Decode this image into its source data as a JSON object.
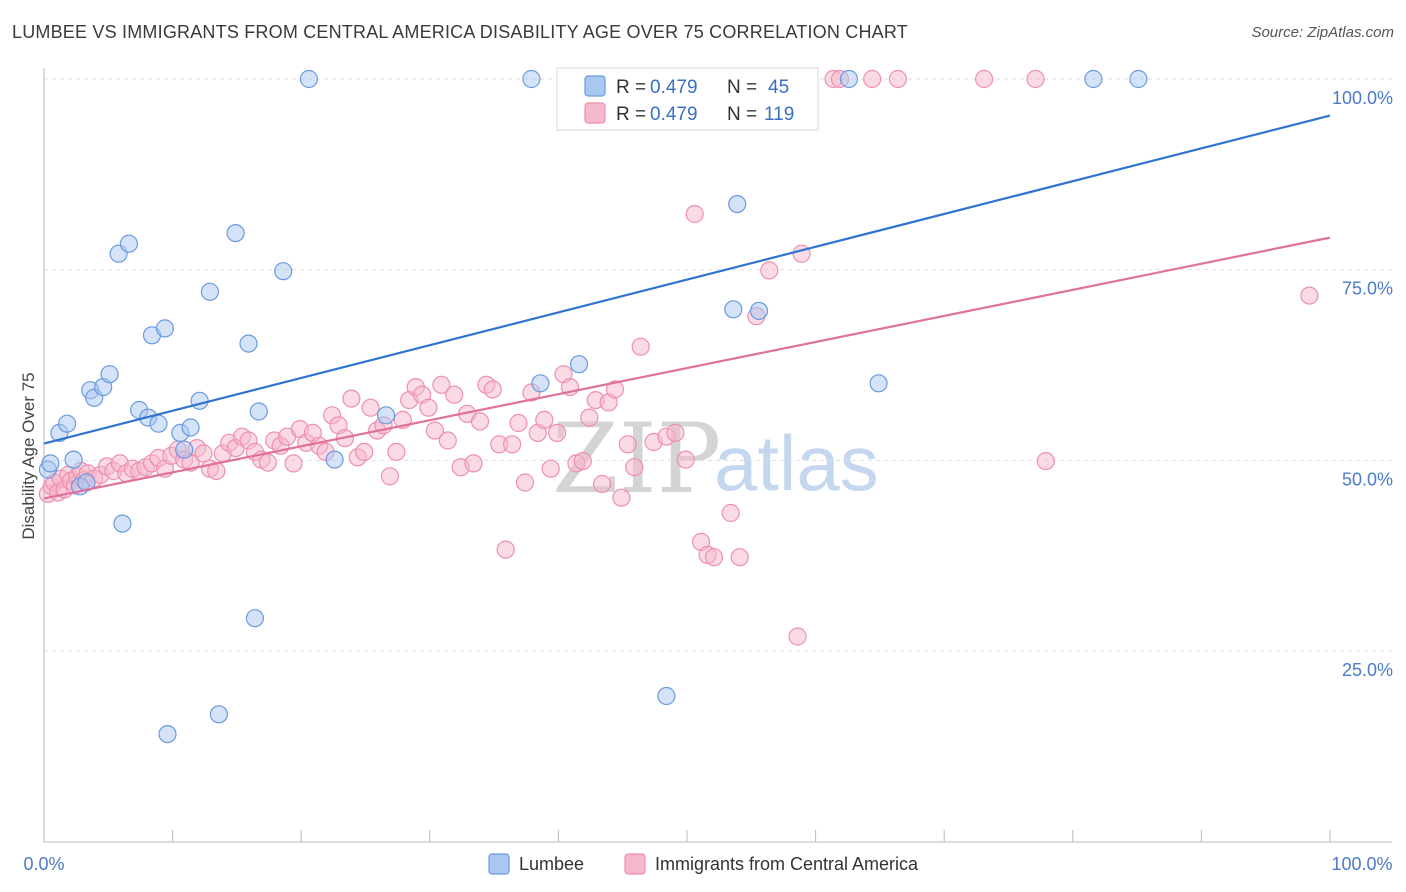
{
  "header": {
    "title": "LUMBEE VS IMMIGRANTS FROM CENTRAL AMERICA DISABILITY AGE OVER 75 CORRELATION CHART",
    "source": "Source: ZipAtlas.com"
  },
  "watermark": {
    "zip": "ZIP",
    "atlas": "atlas"
  },
  "legend_top": [
    {
      "r_label": "R = ",
      "r_value": "0.479",
      "n_label": "N = ",
      "n_value": "45"
    },
    {
      "r_label": "R = ",
      "r_value": "0.479",
      "n_label": "N = ",
      "n_value": "119"
    }
  ],
  "legend_bottom": [
    {
      "label": "Lumbee"
    },
    {
      "label": "Immigrants from Central America"
    }
  ],
  "colors": {
    "blue_fill": "#a9c8f0",
    "blue_stroke": "#6b9ae0",
    "blue_line": "#2f74d0",
    "pink_fill": "#f6b8cc",
    "pink_stroke": "#ee8fb0",
    "pink_line": "#e0719a",
    "tick_text": "#4a7bc8",
    "grid": "#dedede"
  },
  "chart_data": {
    "type": "scatter",
    "title": "LUMBEE VS IMMIGRANTS FROM CENTRAL AMERICA DISABILITY AGE OVER 75 CORRELATION CHART",
    "xlabel": "",
    "ylabel": "Disability Age Over 75",
    "xlim": [
      0,
      100
    ],
    "ylim": [
      3,
      105
    ],
    "x_tick_labels": [
      "0.0%",
      "100.0%"
    ],
    "y_ticks": [
      25,
      50,
      75,
      100
    ],
    "y_tick_labels": [
      "25.0%",
      "50.0%",
      "75.0%",
      "100.0%"
    ],
    "grid": true,
    "series": [
      {
        "name": "Lumbee",
        "trend": [
          [
            0,
            52.2
          ],
          [
            100,
            95.2
          ]
        ],
        "points": [
          [
            0.3,
            48.8
          ],
          [
            0.5,
            49.6
          ],
          [
            1.2,
            53.6
          ],
          [
            1.8,
            54.8
          ],
          [
            2.3,
            50.1
          ],
          [
            2.8,
            46.6
          ],
          [
            3.3,
            47.1
          ],
          [
            3.6,
            59.2
          ],
          [
            3.9,
            58.2
          ],
          [
            4.6,
            59.6
          ],
          [
            5.1,
            61.3
          ],
          [
            5.8,
            77.1
          ],
          [
            6.1,
            41.7
          ],
          [
            6.6,
            78.4
          ],
          [
            7.4,
            56.6
          ],
          [
            8.1,
            55.6
          ],
          [
            8.4,
            66.4
          ],
          [
            8.9,
            54.8
          ],
          [
            9.4,
            67.3
          ],
          [
            9.6,
            14.1
          ],
          [
            10.6,
            53.6
          ],
          [
            10.9,
            51.4
          ],
          [
            11.4,
            54.3
          ],
          [
            12.1,
            57.8
          ],
          [
            12.9,
            72.1
          ],
          [
            13.6,
            16.7
          ],
          [
            14.9,
            79.8
          ],
          [
            15.9,
            65.3
          ],
          [
            16.4,
            29.3
          ],
          [
            16.7,
            56.4
          ],
          [
            18.6,
            74.8
          ],
          [
            20.6,
            100
          ],
          [
            22.6,
            50.1
          ],
          [
            26.6,
            55.9
          ],
          [
            37.9,
            100
          ],
          [
            38.6,
            60.1
          ],
          [
            41.6,
            62.6
          ],
          [
            48.4,
            19.1
          ],
          [
            53.6,
            69.8
          ],
          [
            53.9,
            83.6
          ],
          [
            55.6,
            69.6
          ],
          [
            62.6,
            100
          ],
          [
            64.9,
            60.1
          ],
          [
            81.6,
            100
          ],
          [
            85.1,
            100
          ]
        ]
      },
      {
        "name": "Immigrants from Central America",
        "trend": [
          [
            0,
            45.0
          ],
          [
            100,
            79.2
          ]
        ],
        "points": [
          [
            0.3,
            45.6
          ],
          [
            0.6,
            46.6
          ],
          [
            0.8,
            47.1
          ],
          [
            1.1,
            45.8
          ],
          [
            1.3,
            47.6
          ],
          [
            1.6,
            46.2
          ],
          [
            1.9,
            48.1
          ],
          [
            2.1,
            47.3
          ],
          [
            2.4,
            46.7
          ],
          [
            2.6,
            47.9
          ],
          [
            2.9,
            48.6
          ],
          [
            3.1,
            47.4
          ],
          [
            3.4,
            48.3
          ],
          [
            3.9,
            47.6
          ],
          [
            4.4,
            48.1
          ],
          [
            4.9,
            49.2
          ],
          [
            5.4,
            48.6
          ],
          [
            5.9,
            49.6
          ],
          [
            6.4,
            48.3
          ],
          [
            6.9,
            48.9
          ],
          [
            7.4,
            48.6
          ],
          [
            7.9,
            49.1
          ],
          [
            8.4,
            49.6
          ],
          [
            8.9,
            50.3
          ],
          [
            9.4,
            48.9
          ],
          [
            9.9,
            50.6
          ],
          [
            10.4,
            51.4
          ],
          [
            10.9,
            50.1
          ],
          [
            11.4,
            49.7
          ],
          [
            11.9,
            51.6
          ],
          [
            12.4,
            50.9
          ],
          [
            12.9,
            48.9
          ],
          [
            13.4,
            48.6
          ],
          [
            13.9,
            50.9
          ],
          [
            14.4,
            52.3
          ],
          [
            14.9,
            51.6
          ],
          [
            15.4,
            53.1
          ],
          [
            15.9,
            52.6
          ],
          [
            16.4,
            51.1
          ],
          [
            16.9,
            50.1
          ],
          [
            17.4,
            49.7
          ],
          [
            17.9,
            52.6
          ],
          [
            18.4,
            51.9
          ],
          [
            18.9,
            53.1
          ],
          [
            19.4,
            49.6
          ],
          [
            19.9,
            54.1
          ],
          [
            20.4,
            52.3
          ],
          [
            20.9,
            53.6
          ],
          [
            21.4,
            51.9
          ],
          [
            21.9,
            51.1
          ],
          [
            22.4,
            55.9
          ],
          [
            22.9,
            54.6
          ],
          [
            23.4,
            52.9
          ],
          [
            23.9,
            58.1
          ],
          [
            24.4,
            50.4
          ],
          [
            24.9,
            51.1
          ],
          [
            25.4,
            56.9
          ],
          [
            25.9,
            53.9
          ],
          [
            26.4,
            54.6
          ],
          [
            26.9,
            47.9
          ],
          [
            27.4,
            51.1
          ],
          [
            27.9,
            55.3
          ],
          [
            28.4,
            57.9
          ],
          [
            28.9,
            59.6
          ],
          [
            29.4,
            58.6
          ],
          [
            29.9,
            56.9
          ],
          [
            30.4,
            53.9
          ],
          [
            30.9,
            59.9
          ],
          [
            31.4,
            52.6
          ],
          [
            31.9,
            58.6
          ],
          [
            32.4,
            49.1
          ],
          [
            32.9,
            56.1
          ],
          [
            33.4,
            49.6
          ],
          [
            33.9,
            55.1
          ],
          [
            34.4,
            59.9
          ],
          [
            34.9,
            59.3
          ],
          [
            35.4,
            52.1
          ],
          [
            35.9,
            38.3
          ],
          [
            36.4,
            52.1
          ],
          [
            36.9,
            54.9
          ],
          [
            37.4,
            47.1
          ],
          [
            37.9,
            58.9
          ],
          [
            38.4,
            53.6
          ],
          [
            38.9,
            55.3
          ],
          [
            39.4,
            48.9
          ],
          [
            39.9,
            53.6
          ],
          [
            40.4,
            61.3
          ],
          [
            40.9,
            59.6
          ],
          [
            41.4,
            49.6
          ],
          [
            41.9,
            49.9
          ],
          [
            42.4,
            55.6
          ],
          [
            42.9,
            57.9
          ],
          [
            43.4,
            46.9
          ],
          [
            43.9,
            57.6
          ],
          [
            44.4,
            59.3
          ],
          [
            44.9,
            45.1
          ],
          [
            45.4,
            52.1
          ],
          [
            45.9,
            49.1
          ],
          [
            46.4,
            64.9
          ],
          [
            47.4,
            52.4
          ],
          [
            48.4,
            53.1
          ],
          [
            49.1,
            53.6
          ],
          [
            49.9,
            50.1
          ],
          [
            50.6,
            82.3
          ],
          [
            51.1,
            39.3
          ],
          [
            51.6,
            37.6
          ],
          [
            52.1,
            37.3
          ],
          [
            53.4,
            43.1
          ],
          [
            54.1,
            37.3
          ],
          [
            55.4,
            68.9
          ],
          [
            56.4,
            74.9
          ],
          [
            58.6,
            26.9
          ],
          [
            58.9,
            77.1
          ],
          [
            61.4,
            100
          ],
          [
            61.9,
            100
          ],
          [
            64.4,
            100
          ],
          [
            66.4,
            100
          ],
          [
            73.1,
            100
          ],
          [
            77.1,
            100
          ],
          [
            77.9,
            49.9
          ],
          [
            98.4,
            71.6
          ]
        ]
      }
    ]
  }
}
